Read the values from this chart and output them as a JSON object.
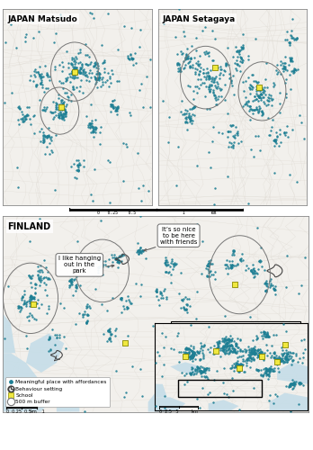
{
  "matsudo_title": "JAPAN Matsudo",
  "setagaya_title": "JAPAN Setagaya",
  "finland_title": "FINLAND",
  "map_bg": "#f2f0ec",
  "water_color": "#c5dde8",
  "road_color": "#e0dcd5",
  "dot_color": "#1e7f94",
  "school_color": "#f0e840",
  "school_edge": "#888800",
  "circle_color": "#777777",
  "callout1": "I like hanging\nout in the\npark",
  "callout2": "It’s so nice\nto be here\nwith friends",
  "legend_dot": "Meaningful place with affordances",
  "legend_bs": "Behaviour setting",
  "legend_school": "School",
  "legend_buf": "500 m buffer"
}
